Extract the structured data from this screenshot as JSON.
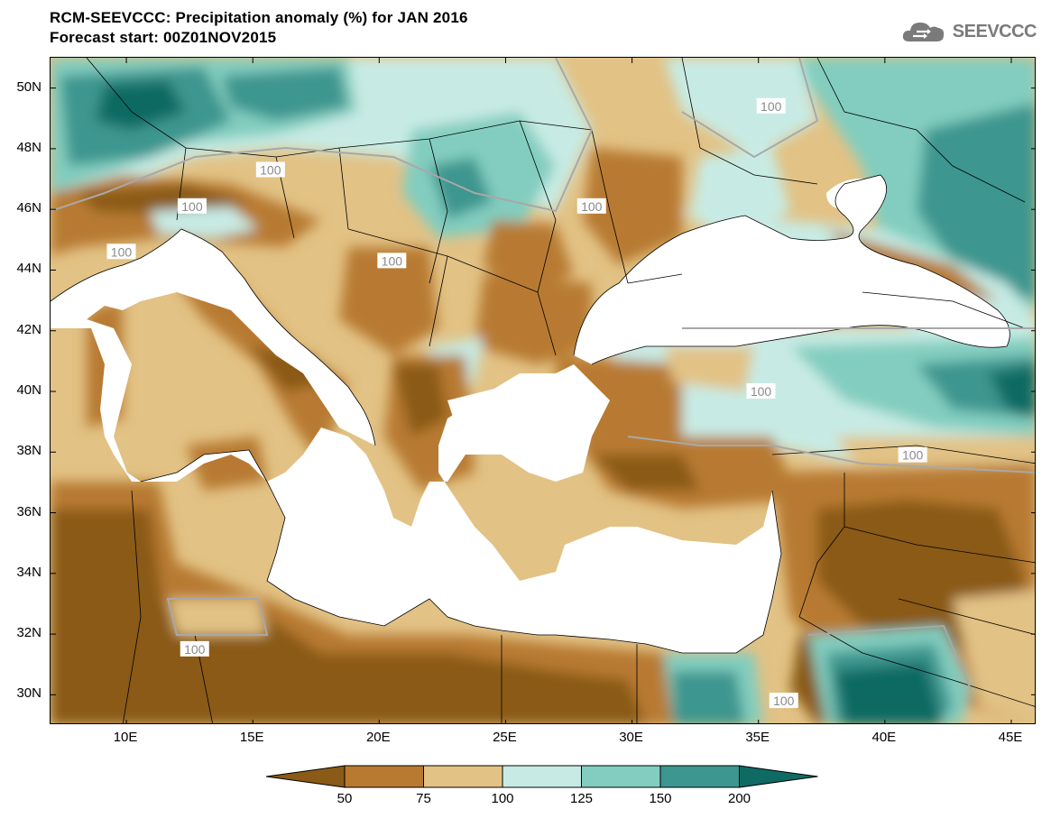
{
  "header": {
    "title_line1": "RCM-SEEVCCC: Precipitation anomaly (%) for JAN 2016",
    "title_line2": "Forecast start: 00Z01NOV2015"
  },
  "logo": {
    "text": "SEEVCCC",
    "icon": "cloud-icon"
  },
  "map": {
    "lon_range": [
      7,
      46
    ],
    "lat_range": [
      29,
      51
    ],
    "lat_ticks": [
      {
        "value": 50,
        "label": "50N"
      },
      {
        "value": 48,
        "label": "48N"
      },
      {
        "value": 46,
        "label": "46N"
      },
      {
        "value": 44,
        "label": "44N"
      },
      {
        "value": 42,
        "label": "42N"
      },
      {
        "value": 40,
        "label": "40N"
      },
      {
        "value": 38,
        "label": "38N"
      },
      {
        "value": 36,
        "label": "36N"
      },
      {
        "value": 34,
        "label": "34N"
      },
      {
        "value": 32,
        "label": "32N"
      },
      {
        "value": 30,
        "label": "30N"
      }
    ],
    "lon_ticks": [
      {
        "value": 10,
        "label": "10E"
      },
      {
        "value": 15,
        "label": "15E"
      },
      {
        "value": 20,
        "label": "20E"
      },
      {
        "value": 25,
        "label": "25E"
      },
      {
        "value": 30,
        "label": "30E"
      },
      {
        "value": 35,
        "label": "35E"
      },
      {
        "value": 40,
        "label": "40E"
      },
      {
        "value": 45,
        "label": "45E"
      }
    ],
    "contour_labels": [
      {
        "text": "100",
        "lon": 15.7,
        "lat": 47.3
      },
      {
        "text": "100",
        "lon": 12.6,
        "lat": 46.1
      },
      {
        "text": "100",
        "lon": 9.8,
        "lat": 44.6
      },
      {
        "text": "100",
        "lon": 28.4,
        "lat": 46.1
      },
      {
        "text": "100",
        "lon": 20.5,
        "lat": 44.3
      },
      {
        "text": "100",
        "lon": 35.5,
        "lat": 49.4
      },
      {
        "text": "100",
        "lon": 35.1,
        "lat": 40.0
      },
      {
        "text": "100",
        "lon": 41.1,
        "lat": 37.9
      },
      {
        "text": "100",
        "lon": 12.7,
        "lat": 31.5
      },
      {
        "text": "100",
        "lon": 36.0,
        "lat": 29.8
      }
    ],
    "colors": {
      "sea": "#ffffff",
      "below_50": "#8a5a16",
      "50_75": "#b87a30",
      "75_100": "#e2c285",
      "100_125": "#c7ebe4",
      "125_150": "#82cdbf",
      "150_200": "#3d968f",
      "above_200": "#0e6a63",
      "contour_100": "#a8a8a8",
      "border": "#000000"
    }
  },
  "legend": {
    "labels": [
      "50",
      "75",
      "100",
      "125",
      "150",
      "200"
    ],
    "colors": [
      "#8a5a16",
      "#b87a30",
      "#e2c285",
      "#c7ebe4",
      "#82cdbf",
      "#3d968f",
      "#0e6a63"
    ]
  }
}
